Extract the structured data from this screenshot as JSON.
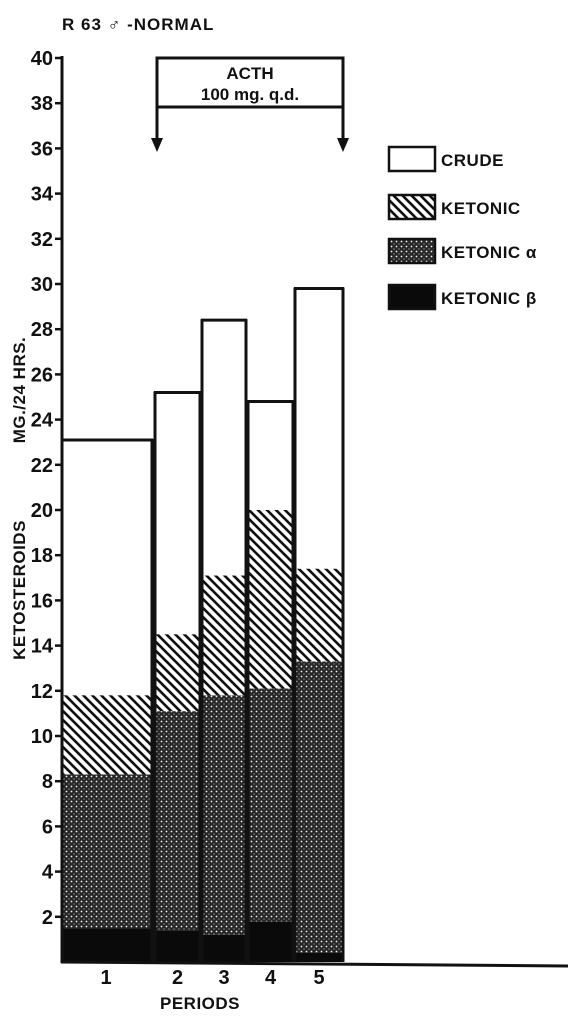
{
  "chart_data": {
    "type": "bar",
    "stacked": true,
    "title": "R 63 ♂ -NORMAL",
    "xlabel": "PERIODS",
    "ylabel_main": "KETOSTEROIDS",
    "ylabel_unit": "MG./24 HRS.",
    "ylim": [
      0,
      40
    ],
    "yticks": [
      2,
      4,
      6,
      8,
      10,
      12,
      14,
      16,
      18,
      20,
      22,
      24,
      26,
      28,
      30,
      32,
      34,
      36,
      38,
      40
    ],
    "categories": [
      "1",
      "2",
      "3",
      "4",
      "5"
    ],
    "series": [
      {
        "name": "KETONIC β",
        "pattern": "solid",
        "values": [
          1.5,
          1.4,
          1.2,
          1.8,
          0.4
        ]
      },
      {
        "name": "KETONIC α",
        "pattern": "dots",
        "values": [
          6.8,
          9.7,
          10.6,
          10.3,
          12.9
        ]
      },
      {
        "name": "KETONIC",
        "pattern": "hatch",
        "values": [
          3.5,
          3.4,
          5.3,
          7.9,
          4.1
        ]
      },
      {
        "name": "CRUDE",
        "pattern": "open",
        "values": [
          11.3,
          10.7,
          11.3,
          4.8,
          12.4
        ]
      }
    ],
    "totals": [
      23.1,
      25.2,
      28.4,
      24.8,
      29.8
    ],
    "legend": {
      "position": "right",
      "entries": [
        {
          "label": "CRUDE",
          "pattern": "open"
        },
        {
          "label": "KETONIC",
          "pattern": "hatch"
        },
        {
          "label": "KETONIC α",
          "pattern": "dots"
        },
        {
          "label": "KETONIC β",
          "pattern": "solid"
        }
      ]
    },
    "annotation": {
      "line1": "ACTH",
      "line2": "100 mg. q.d.",
      "from_period": "2",
      "to_period": "5"
    }
  }
}
